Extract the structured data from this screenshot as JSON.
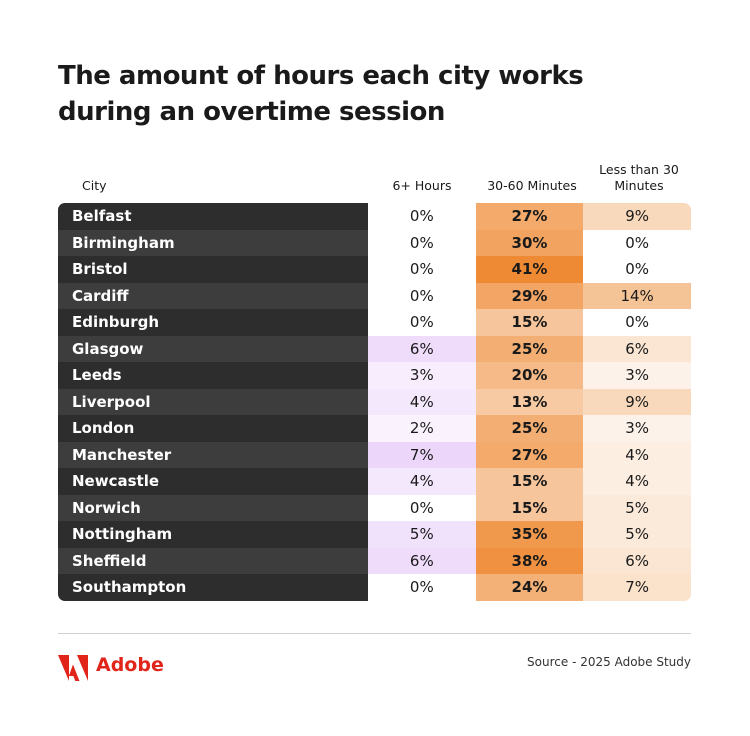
{
  "title": "The amount of hours each city works during an overtime session",
  "table": {
    "header": [
      "City",
      "6+ Hours",
      "30-60 Minutes",
      "Less than 30 Minutes"
    ],
    "rows": [
      [
        "Belfast",
        "0%",
        "27%",
        "9%"
      ],
      [
        "Birmingham",
        "0%",
        "30%",
        "0%"
      ],
      [
        "Bristol",
        "0%",
        "41%",
        "0%"
      ],
      [
        "Cardiff",
        "0%",
        "29%",
        "14%"
      ],
      [
        "Edinburgh",
        "0%",
        "15%",
        "0%"
      ],
      [
        "Glasgow",
        "6%",
        "25%",
        "6%"
      ],
      [
        "Leeds",
        "3%",
        "20%",
        "3%"
      ],
      [
        "Liverpool",
        "4%",
        "13%",
        "9%"
      ],
      [
        "London",
        "2%",
        "25%",
        "3%"
      ],
      [
        "Manchester",
        "7%",
        "27%",
        "4%"
      ],
      [
        "Newcastle",
        "4%",
        "15%",
        "4%"
      ],
      [
        "Norwich",
        "0%",
        "15%",
        "5%"
      ],
      [
        "Nottingham",
        "5%",
        "35%",
        "5%"
      ],
      [
        "Sheffield",
        "6%",
        "38%",
        "6%"
      ],
      [
        "Southampton",
        "0%",
        "24%",
        "7%"
      ]
    ]
  },
  "footer": {
    "brand": "Adobe",
    "source": "Source - 2025 Adobe Study"
  }
}
